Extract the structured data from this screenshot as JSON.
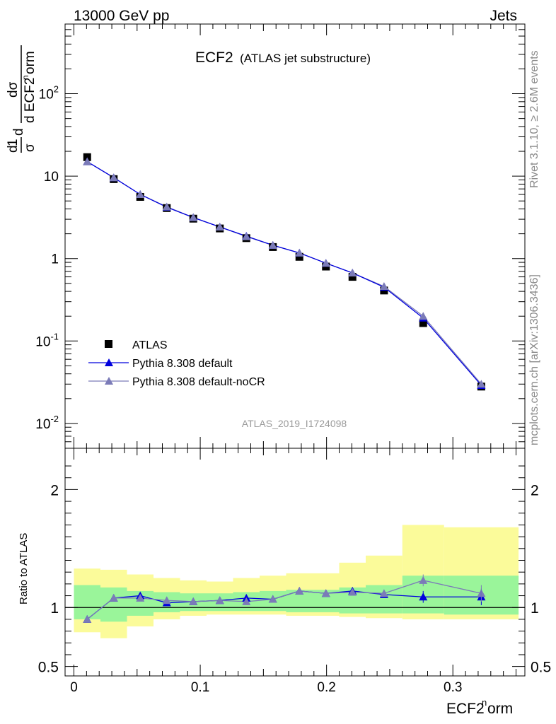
{
  "header": {
    "left": "13000 GeV pp",
    "right": "Jets"
  },
  "plot_title": {
    "main": "ECF2",
    "sub": "(ATLAS jet substructure)"
  },
  "side_labels": {
    "rivet": "Rivet 3.1.10, ≥ 2.6M events",
    "mcplots": "mcplots.cern.ch [arXiv:1306.3436]"
  },
  "analysis_tag": "ATLAS_2019_I1724098",
  "colors": {
    "data": "#000000",
    "default": "#0000dd",
    "nocr": "#7b7bb8",
    "band_inner": "#9af59a",
    "band_outer": "#fbfb9a"
  },
  "chart_data": [
    {
      "type": "line",
      "scale": "log",
      "ylabel": "1/σ dσ/d ECF2norm",
      "yticks": [
        "10^-2",
        "10^-1",
        "1",
        "10",
        "10^2"
      ],
      "ylim": [
        0.005,
        700
      ],
      "xlim": [
        -0.007,
        0.357
      ],
      "legend_position": "lower-left",
      "x": [
        0.0105,
        0.0315,
        0.0525,
        0.0735,
        0.0945,
        0.1155,
        0.1365,
        0.1575,
        0.1785,
        0.1995,
        0.2205,
        0.2455,
        0.2765,
        0.3225
      ],
      "series": [
        {
          "name": "ATLAS",
          "values": [
            17.0,
            9.2,
            5.6,
            4.1,
            3.05,
            2.32,
            1.77,
            1.38,
            1.05,
            0.8,
            0.6,
            0.41,
            0.165,
            0.028
          ]
        },
        {
          "name": "Pythia 8.308 default",
          "values": [
            15.0,
            9.6,
            6.0,
            4.2,
            3.15,
            2.42,
            1.87,
            1.45,
            1.17,
            0.88,
            0.67,
            0.45,
            0.19,
            0.029
          ]
        },
        {
          "name": "Pythia 8.308 default-noCR",
          "values": [
            15.0,
            9.6,
            6.0,
            4.25,
            3.15,
            2.42,
            1.85,
            1.45,
            1.17,
            0.88,
            0.67,
            0.46,
            0.2,
            0.03
          ]
        }
      ]
    },
    {
      "type": "line",
      "ylabel": "Ratio to ATLAS",
      "xlabel": "ECF2norm",
      "yticks": [
        "0.5",
        "1",
        "2"
      ],
      "xticks": [
        "0",
        "0.1",
        "0.2",
        "0.3"
      ],
      "ylim": [
        0.42,
        2.35
      ],
      "xlim": [
        -0.007,
        0.357
      ],
      "band_edges": [
        0.0,
        0.021,
        0.042,
        0.063,
        0.084,
        0.105,
        0.126,
        0.147,
        0.168,
        0.189,
        0.21,
        0.231,
        0.26,
        0.293,
        0.352
      ],
      "band_inner": [
        [
          0.9,
          1.19
        ],
        [
          0.88,
          1.17
        ],
        [
          0.93,
          1.14
        ],
        [
          0.96,
          1.13
        ],
        [
          0.97,
          1.12
        ],
        [
          0.97,
          1.12
        ],
        [
          0.97,
          1.13
        ],
        [
          0.97,
          1.14
        ],
        [
          0.96,
          1.15
        ],
        [
          0.96,
          1.15
        ],
        [
          0.95,
          1.17
        ],
        [
          0.95,
          1.19
        ],
        [
          0.95,
          1.27
        ],
        [
          0.94,
          1.27
        ]
      ],
      "band_outer": [
        [
          0.79,
          1.33
        ],
        [
          0.74,
          1.32
        ],
        [
          0.84,
          1.28
        ],
        [
          0.9,
          1.25
        ],
        [
          0.93,
          1.23
        ],
        [
          0.94,
          1.22
        ],
        [
          0.94,
          1.25
        ],
        [
          0.94,
          1.27
        ],
        [
          0.93,
          1.29
        ],
        [
          0.93,
          1.29
        ],
        [
          0.92,
          1.38
        ],
        [
          0.91,
          1.44
        ],
        [
          0.9,
          1.7
        ],
        [
          0.9,
          1.68
        ]
      ],
      "series": [
        {
          "name": "Pythia 8.308 default",
          "values": [
            0.9,
            1.08,
            1.1,
            1.04,
            1.05,
            1.06,
            1.08,
            1.07,
            1.14,
            1.12,
            1.14,
            1.11,
            1.09,
            1.09
          ]
        },
        {
          "name": "Pythia 8.308 default-noCR",
          "values": [
            0.9,
            1.08,
            1.08,
            1.06,
            1.05,
            1.06,
            1.05,
            1.07,
            1.14,
            1.12,
            1.13,
            1.12,
            1.23,
            1.12
          ]
        }
      ]
    }
  ]
}
